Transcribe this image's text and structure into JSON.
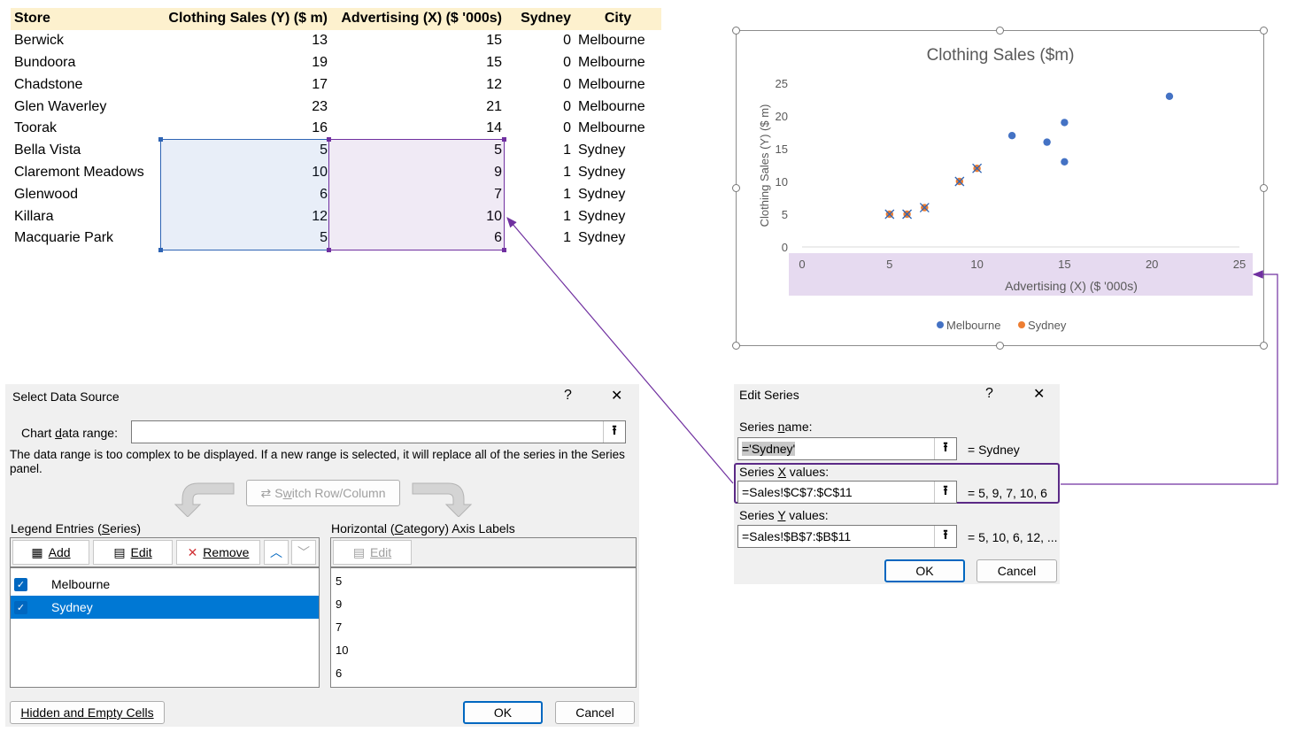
{
  "sheet": {
    "headers": [
      "Store",
      "Clothing Sales (Y) ($ m)",
      "Advertising (X) ($ '000s)",
      "Sydney",
      "City"
    ],
    "rows": [
      [
        "Berwick",
        "13",
        "15",
        "0",
        "Melbourne"
      ],
      [
        "Bundoora",
        "19",
        "15",
        "0",
        "Melbourne"
      ],
      [
        "Chadstone",
        "17",
        "12",
        "0",
        "Melbourne"
      ],
      [
        "Glen Waverley",
        "23",
        "21",
        "0",
        "Melbourne"
      ],
      [
        "Toorak",
        "16",
        "14",
        "0",
        "Melbourne"
      ],
      [
        "Bella Vista",
        "5",
        "5",
        "1",
        "Sydney"
      ],
      [
        "Claremont Meadows",
        "10",
        "9",
        "1",
        "Sydney"
      ],
      [
        "Glenwood",
        "6",
        "7",
        "1",
        "Sydney"
      ],
      [
        "Killara",
        "12",
        "10",
        "1",
        "Sydney"
      ],
      [
        "Macquarie Park",
        "5",
        "6",
        "1",
        "Sydney"
      ]
    ]
  },
  "colors": {
    "melbourne": "#4472c4",
    "sydney": "#ed7d31",
    "selection_y": "#2e64b4",
    "selection_x": "#7030a0",
    "header_fill": "#fdf1ce",
    "xaxis_highlight": "#e6daf0"
  },
  "chart_data": {
    "type": "scatter",
    "title": "Clothing Sales ($m)",
    "xlabel": "Advertising (X) ($ '000s)",
    "ylabel": "Clothing Sales (Y) ($ m)",
    "xlim": [
      0,
      25
    ],
    "ylim": [
      0,
      25
    ],
    "xticks": [
      "0",
      "5",
      "10",
      "15",
      "20",
      "25"
    ],
    "yticks": [
      "0",
      "5",
      "10",
      "15",
      "20",
      "25"
    ],
    "grid": false,
    "legend_position": "bottom",
    "series": [
      {
        "name": "Melbourne",
        "color": "#4472c4",
        "x": [
          15,
          15,
          12,
          21,
          14
        ],
        "y": [
          13,
          19,
          17,
          23,
          16
        ]
      },
      {
        "name": "Sydney",
        "color": "#ed7d31",
        "x": [
          5,
          9,
          7,
          10,
          6
        ],
        "y": [
          5,
          10,
          6,
          12,
          5
        ]
      }
    ]
  },
  "select_data_source": {
    "title": "Select Data Source",
    "help": "?",
    "close": "✕",
    "chart_range_label_pre": "Chart ",
    "chart_range_label_u": "d",
    "chart_range_label_post": "ata range:",
    "chart_range_value": "",
    "message": "The data range is too complex to be displayed. If a new range is selected, it will replace all of the series in the Series panel.",
    "switch_label_pre": "S",
    "switch_label_u": "w",
    "switch_label_post": "itch Row/Column",
    "legend_header_pre": "Legend Entries (",
    "legend_header_u": "S",
    "legend_header_post": "eries)",
    "add_label": "Add",
    "edit_label": "Edit",
    "remove_label": "Remove",
    "series_items": [
      "Melbourne",
      "Sydney"
    ],
    "axis_header_pre": "Horizontal (",
    "axis_header_u": "C",
    "axis_header_post": "ategory) Axis Labels",
    "axis_edit_label": "Edit",
    "axis_labels": [
      "5",
      "9",
      "7",
      "10",
      "6"
    ],
    "hidden_label": "Hidden and Empty Cells",
    "ok": "OK",
    "cancel": "Cancel"
  },
  "edit_series": {
    "title": "Edit Series",
    "help": "?",
    "close": "✕",
    "name_label_pre": "Series ",
    "name_label_u": "n",
    "name_label_post": "ame:",
    "name_value": "='Sydney'",
    "name_preview": "= Sydney",
    "x_label_pre": "Series ",
    "x_label_u": "X",
    "x_label_post": " values:",
    "x_value": "=Sales!$C$7:$C$11",
    "x_preview": "= 5, 9, 7, 10, 6",
    "y_label_pre": "Series ",
    "y_label_u": "Y",
    "y_label_post": " values:",
    "y_value": "=Sales!$B$7:$B$11",
    "y_preview": "= 5, 10, 6, 12, ...",
    "ok": "OK",
    "cancel": "Cancel"
  }
}
